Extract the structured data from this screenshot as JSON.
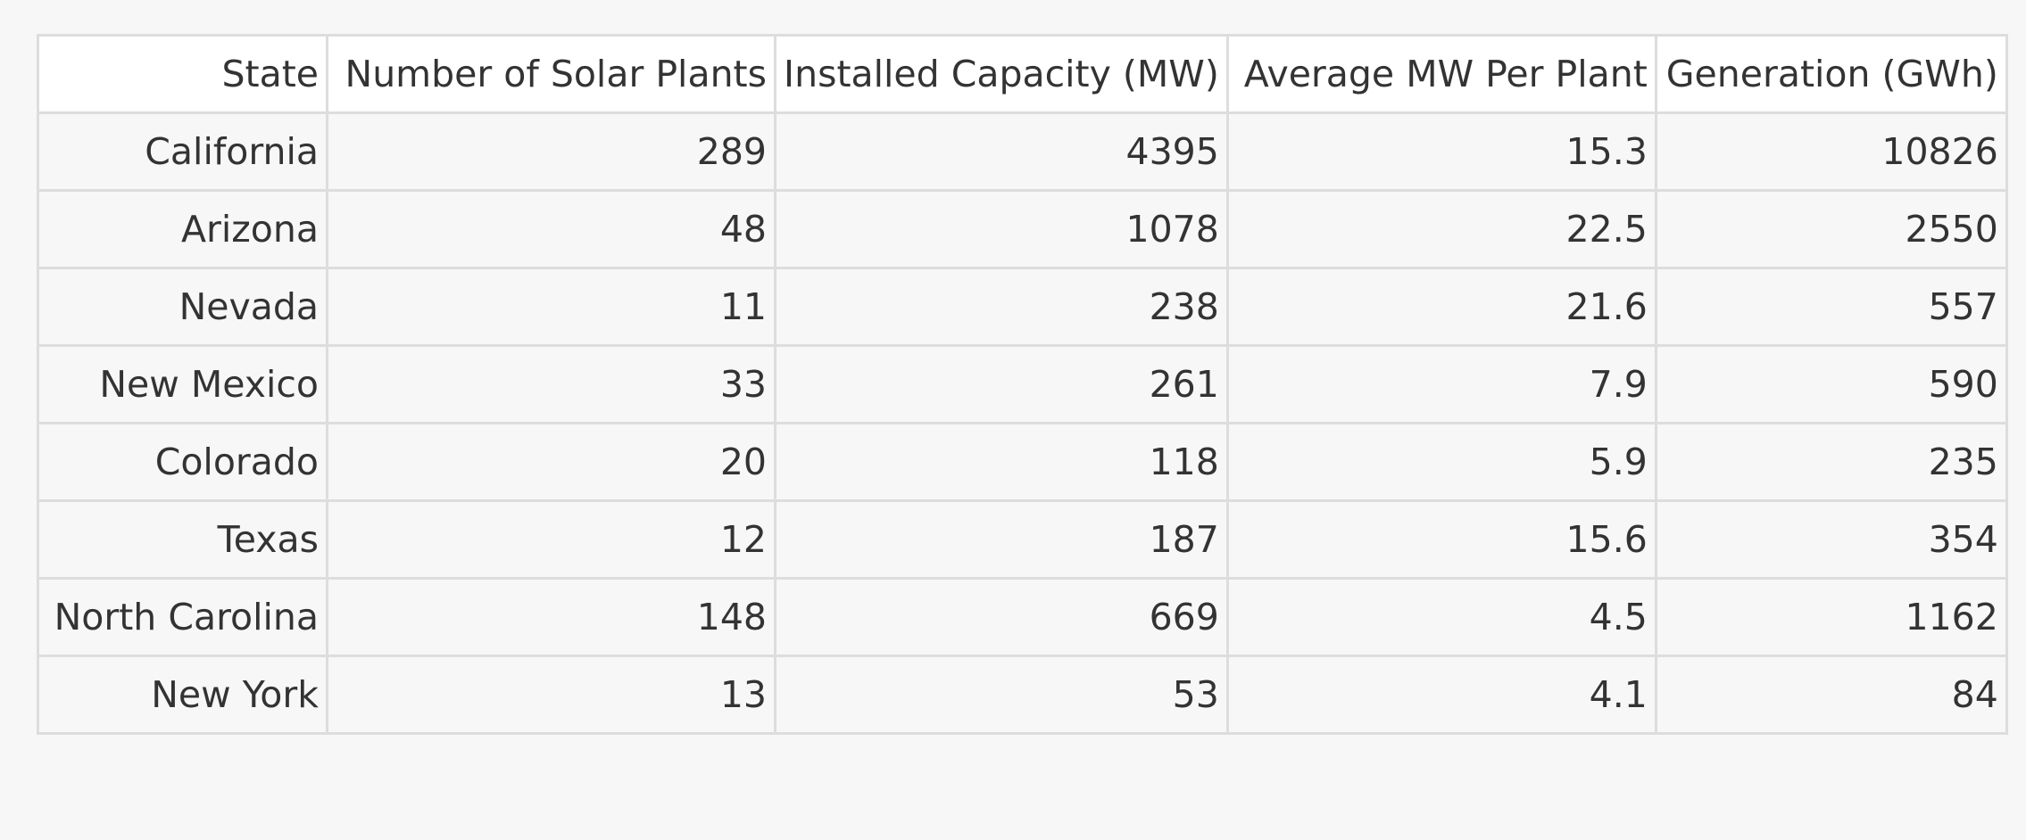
{
  "chart_data": {
    "type": "table",
    "columns": [
      "State",
      "Number of Solar Plants",
      "Installed Capacity (MW)",
      "Average MW Per Plant",
      "Generation (GWh)"
    ],
    "rows": [
      [
        "California",
        "289",
        "4395",
        "15.3",
        "10826"
      ],
      [
        "Arizona",
        "48",
        "1078",
        "22.5",
        "2550"
      ],
      [
        "Nevada",
        "11",
        "238",
        "21.6",
        "557"
      ],
      [
        "New Mexico",
        "33",
        "261",
        "7.9",
        "590"
      ],
      [
        "Colorado",
        "20",
        "118",
        "5.9",
        "235"
      ],
      [
        "Texas",
        "12",
        "187",
        "15.6",
        "354"
      ],
      [
        "North Carolina",
        "148",
        "669",
        "4.5",
        "1162"
      ],
      [
        "New York",
        "13",
        "53",
        "4.1",
        "84"
      ]
    ]
  }
}
